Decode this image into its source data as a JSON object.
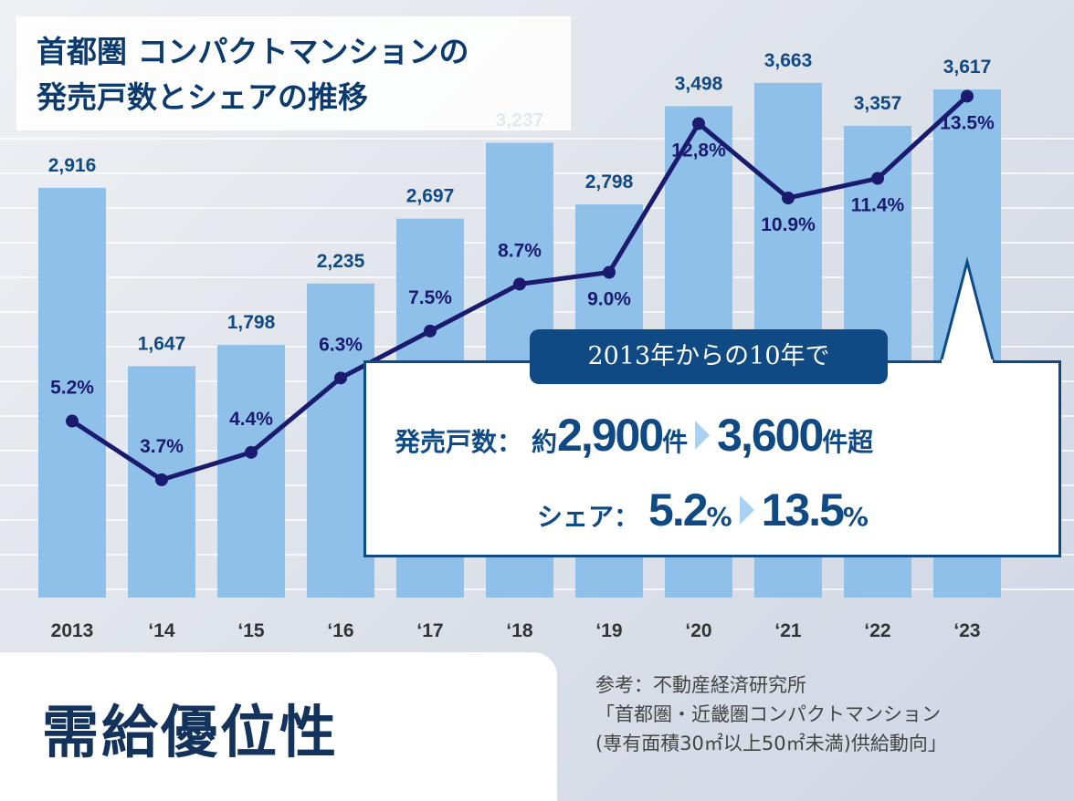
{
  "title": {
    "line1": "首都圏 コンパクトマンションの",
    "line2": "発売戸数とシェアの推移"
  },
  "chart_data": {
    "type": "bar",
    "categories": [
      "2013",
      "‘14",
      "‘15",
      "‘16",
      "‘17",
      "‘18",
      "‘19",
      "‘20",
      "‘21",
      "‘22",
      "‘23"
    ],
    "series": [
      {
        "type": "bar",
        "values": [
          2916,
          1647,
          1798,
          2235,
          2697,
          3237,
          2798,
          3498,
          3663,
          3357,
          3617
        ],
        "labels": [
          "2,916",
          "1,647",
          "1,798",
          "2,235",
          "2,697",
          "3,237",
          "2,798",
          "3,498",
          "3,663",
          "3,357",
          "3,617"
        ],
        "color": "#8fc0ea"
      },
      {
        "type": "line",
        "values": [
          5.2,
          3.7,
          4.4,
          6.3,
          7.5,
          8.7,
          9.0,
          12.8,
          10.9,
          11.4,
          13.5
        ],
        "labels": [
          "5.2%",
          "3.7%",
          "4.4%",
          "6.3%",
          "7.5%",
          "8.7%",
          "9.0%",
          "12,8%",
          "10.9%",
          "11.4%",
          "13.5%"
        ],
        "color": "#1a1a6e"
      }
    ],
    "grid": true
  },
  "callout": {
    "header": "2013年からの10年で",
    "units_label": "発売戸数：",
    "approx": "約",
    "from_units": "2,900",
    "unit": "件",
    "to_units": "3,600",
    "unit_over": "件超",
    "share_label": "シェア：",
    "from_share": "5.2",
    "to_share": "13.5",
    "percent": "%"
  },
  "headline": "需給優位性",
  "source": {
    "line1": "参考：不動産経済研究所",
    "line2": "「首都圏・近畿圏コンパクトマンション",
    "line3": "(専有面積30㎡以上50㎡未満)供給動向」"
  }
}
